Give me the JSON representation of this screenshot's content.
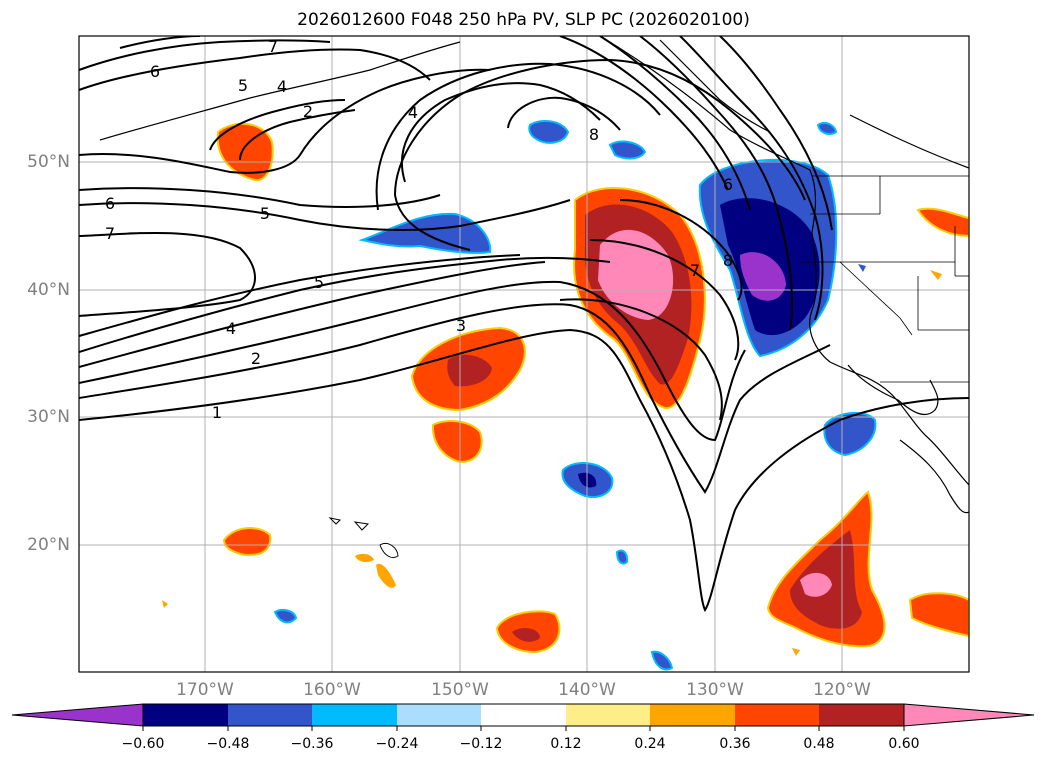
{
  "title": "2026012600 F048 250 hPa PV, SLP PC (2026020100)",
  "lat_labels": [
    "50°N",
    "40°N",
    "30°N",
    "20°N"
  ],
  "lon_labels": [
    "170°W",
    "160°W",
    "150°W",
    "140°W",
    "130°W",
    "120°W"
  ],
  "colorbar": {
    "labels": [
      "−0.60",
      "−0.48",
      "−0.36",
      "−0.24",
      "−0.12",
      "0.12",
      "0.24",
      "0.36",
      "0.48",
      "0.60"
    ],
    "colors": [
      "#9933cc",
      "#000080",
      "#3355cc",
      "#00bbff",
      "#aaddff",
      "#ffffff",
      "#ffee88",
      "#ffa500",
      "#ff4500",
      "#b22222",
      "#ff88b8"
    ]
  },
  "contour_labels": [
    "7",
    "6",
    "5",
    "4",
    "2",
    "4",
    "8",
    "6",
    "6",
    "7",
    "5",
    "5",
    "4",
    "2",
    "3",
    "1",
    "7",
    "8"
  ]
}
